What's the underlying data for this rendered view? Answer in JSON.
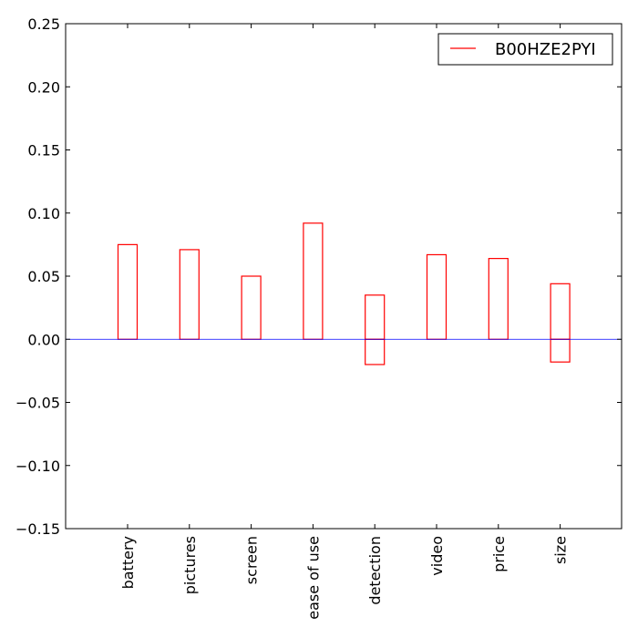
{
  "chart_data": {
    "type": "bar",
    "categories": [
      "battery",
      "pictures",
      "screen",
      "ease of use",
      "detection",
      "video",
      "price",
      "size"
    ],
    "series": [
      {
        "name": "B00HZE2PYI",
        "color": "#ff0000",
        "fill": "none",
        "positive": [
          0.075,
          0.071,
          0.05,
          0.092,
          0.035,
          0.067,
          0.064,
          0.044
        ],
        "negative": [
          0,
          0,
          0,
          0,
          -0.02,
          0,
          0,
          -0.018
        ]
      }
    ],
    "ylim": [
      -0.15,
      0.25
    ],
    "yticks": [
      -0.15,
      -0.1,
      -0.05,
      0.0,
      0.05,
      0.1,
      0.15,
      0.2,
      0.25
    ],
    "ytick_labels": [
      "−0.15",
      "−0.10",
      "−0.05",
      "0.00",
      "0.05",
      "0.10",
      "0.15",
      "0.20",
      "0.25"
    ],
    "zero_line_color": "#0000ff",
    "grid": false,
    "legend_position": "top-right",
    "title": "",
    "xlabel": "",
    "ylabel": ""
  }
}
